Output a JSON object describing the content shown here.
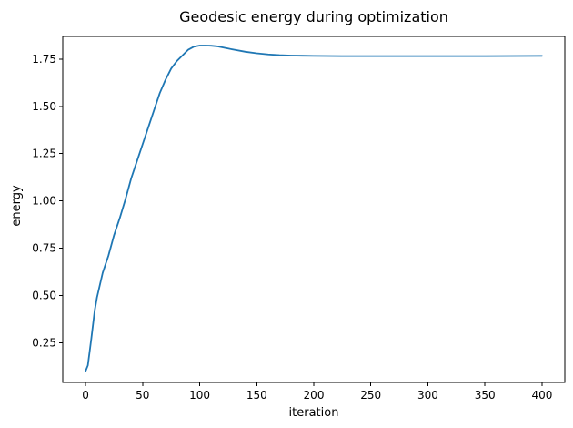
{
  "chart_data": {
    "type": "line",
    "title": "Geodesic energy during optimization",
    "xlabel": "iteration",
    "ylabel": "energy",
    "xlim": [
      -20,
      420
    ],
    "ylim": [
      0.04,
      1.87
    ],
    "xticks": [
      0,
      50,
      100,
      150,
      200,
      250,
      300,
      350,
      400
    ],
    "yticks": [
      0.25,
      0.5,
      0.75,
      1.0,
      1.25,
      1.5,
      1.75
    ],
    "xtick_labels": [
      "0",
      "50",
      "100",
      "150",
      "200",
      "250",
      "300",
      "350",
      "400"
    ],
    "ytick_labels": [
      "0.25",
      "0.50",
      "0.75",
      "1.00",
      "1.25",
      "1.50",
      "1.75"
    ],
    "grid": false,
    "colors": {
      "line": "#1f77b4",
      "axis": "#000000",
      "background": "#ffffff"
    },
    "series": [
      {
        "x": [
          0,
          2,
          5,
          8,
          10,
          15,
          20,
          25,
          30,
          35,
          40,
          45,
          50,
          55,
          60,
          65,
          70,
          75,
          80,
          85,
          90,
          95,
          100,
          105,
          110,
          115,
          120,
          125,
          130,
          140,
          150,
          160,
          170,
          180,
          190,
          200,
          225,
          250,
          300,
          350,
          400
        ],
        "y": [
          0.1,
          0.13,
          0.27,
          0.42,
          0.49,
          0.62,
          0.71,
          0.82,
          0.91,
          1.01,
          1.12,
          1.21,
          1.3,
          1.39,
          1.48,
          1.57,
          1.64,
          1.7,
          1.74,
          1.77,
          1.8,
          1.816,
          1.822,
          1.822,
          1.821,
          1.818,
          1.812,
          1.806,
          1.8,
          1.789,
          1.781,
          1.775,
          1.771,
          1.769,
          1.768,
          1.767,
          1.766,
          1.766,
          1.766,
          1.766,
          1.767
        ]
      }
    ]
  }
}
